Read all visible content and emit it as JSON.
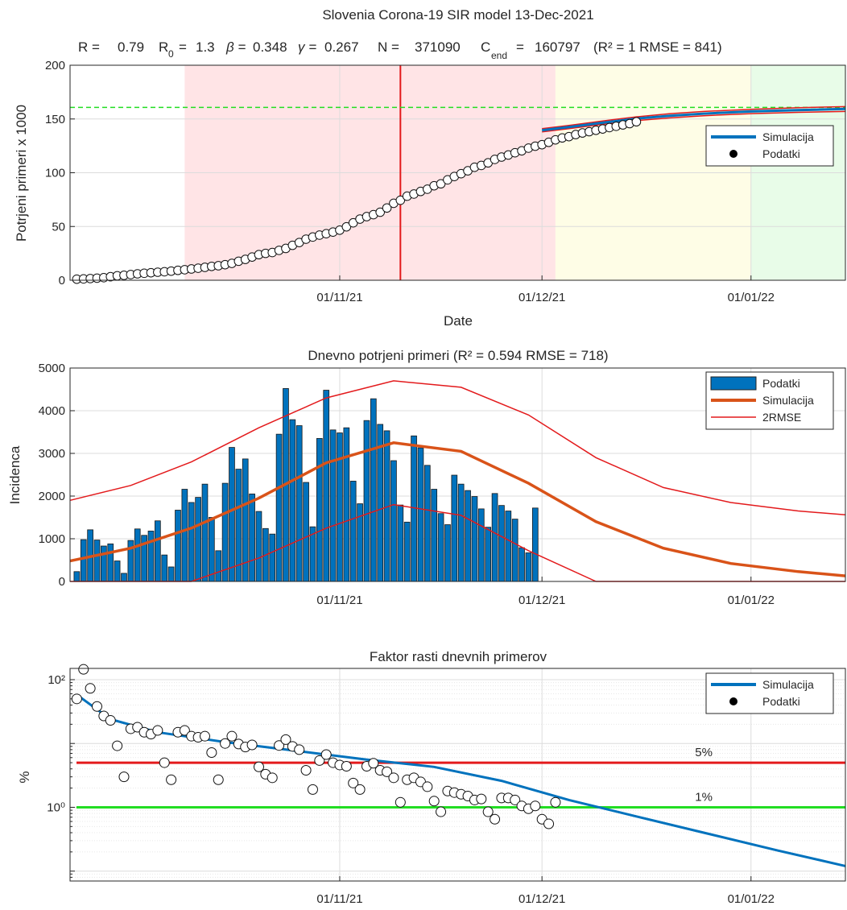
{
  "chart_data": [
    {
      "type": "line",
      "title": "Slovenia Corona-19 SIR model 13-Dec-2021",
      "params": {
        "R_lbl": "R =",
        "R": "0.79",
        "R0_lbl": "R",
        "R0_sub": "0",
        "R0_eq": "=",
        "R0": "1.3",
        "beta_lbl": "β =",
        "beta": "0.348",
        "gamma_lbl": "γ =",
        "gamma": "0.267",
        "N_lbl": "N =",
        "N": "371090",
        "C_lbl": "C",
        "C_sub": "end",
        "C_eq": "=",
        "C_end": "160797",
        "fit": "(R² = 1  RMSE = 841)"
      },
      "xlabel": "Date",
      "ylabel": "Potrjeni primeri x 1000",
      "xlim": [
        "2021-09-22",
        "2022-01-15"
      ],
      "ylim": [
        0,
        200
      ],
      "xticks": [
        "01/11/21",
        "01/12/21",
        "01/01/22"
      ],
      "yticks": [
        "0",
        "50",
        "100",
        "150",
        "200"
      ],
      "grid": true,
      "legend": {
        "position": "top-right",
        "entries": [
          "Simulacija",
          "Podatki"
        ]
      },
      "shaded_regions": [
        {
          "from": "2021-10-09",
          "to": "2021-12-03",
          "color": "#ffe4e6"
        },
        {
          "from": "2021-12-03",
          "to": "2022-01-01",
          "color": "#fefde6"
        },
        {
          "from": "2022-01-01",
          "to": "2022-01-15",
          "color": "#e8fce8"
        }
      ],
      "vertical_marker": {
        "date": "2021-11-10",
        "color": "#e31a1c"
      },
      "horizontal_marker": {
        "value": 160.8,
        "color": "#22dd22"
      },
      "simulation_dates": [
        "2021-12-01",
        "2021-12-05",
        "2021-12-10",
        "2021-12-15",
        "2021-12-20",
        "2021-12-25",
        "2022-01-01",
        "2022-01-08",
        "2022-01-15"
      ],
      "simulation_values": [
        139.5,
        142.5,
        146.5,
        150.3,
        153.0,
        155.0,
        157.0,
        158.3,
        159.3
      ],
      "band_upper": [
        141.0,
        144.0,
        148.2,
        152.0,
        155.0,
        157.0,
        159.0,
        160.5,
        161.5
      ],
      "band_lower": [
        138.0,
        141.0,
        145.0,
        148.5,
        151.0,
        153.0,
        155.0,
        156.2,
        157.0
      ],
      "data_start": "2021-09-23",
      "data_values": [
        1.0,
        1.25,
        1.6,
        1.95,
        2.4,
        3.3,
        4.2,
        4.6,
        5.3,
        6.0,
        6.5,
        7.0,
        7.5,
        7.9,
        8.5,
        9.2,
        9.8,
        10.5,
        11.2,
        12.0,
        12.9,
        13.5,
        14.5,
        15.7,
        17.7,
        19.4,
        21.6,
        23.8,
        25.0,
        25.8,
        27.8,
        29.6,
        32.5,
        35.1,
        38.2,
        40.2,
        42.0,
        43.3,
        44.8,
        46.6,
        49.7,
        53.4,
        56.9,
        59.2,
        61.0,
        63.3,
        67.2,
        71.6,
        74.4,
        78.2,
        80.2,
        82.6,
        84.7,
        87.9,
        89.7,
        93.4,
        96.5,
        99.1,
        101.8,
        105.1,
        106.8,
        109.2,
        112.4,
        114.6,
        116.5,
        118.6,
        120.4,
        122.9,
        124.7,
        126.1,
        128.3,
        130.6,
        132.4,
        133.6,
        135.5,
        137.0,
        138.2,
        139.5,
        140.7,
        142.0,
        143.2,
        144.5,
        145.7,
        147.4
      ]
    },
    {
      "type": "bar",
      "title": "Dnevno potrjeni primeri (R² = 0.594  RMSE = 718)",
      "ylabel": "Incidenca",
      "xlim": [
        "2021-09-22",
        "2022-01-15"
      ],
      "ylim": [
        0,
        5000
      ],
      "xticks": [
        "01/11/21",
        "01/12/21",
        "01/01/22"
      ],
      "yticks": [
        "0",
        "1000",
        "2000",
        "3000",
        "4000",
        "5000"
      ],
      "grid": true,
      "legend": {
        "position": "top-right",
        "entries": [
          "Podatki",
          "Simulacija",
          "2RMSE"
        ]
      },
      "data_start": "2021-09-23",
      "values": [
        230,
        980,
        1210,
        970,
        830,
        880,
        480,
        190,
        960,
        1230,
        1080,
        1180,
        1420,
        620,
        340,
        1670,
        2160,
        1850,
        1970,
        2280,
        1500,
        720,
        2300,
        3140,
        2630,
        2870,
        2050,
        1640,
        1240,
        1110,
        3450,
        4520,
        3790,
        3650,
        2320,
        1280,
        3350,
        4480,
        3550,
        3480,
        3600,
        2350,
        1820,
        3770,
        4280,
        3680,
        3530,
        2830,
        1790,
        1390,
        3410,
        3130,
        2720,
        2160,
        1590,
        1330,
        2490,
        2280,
        2130,
        1990,
        1700,
        1270,
        2060,
        1780,
        1650,
        1460,
        790,
        670,
        1720
      ],
      "simulation_dates": [
        "2021-09-22",
        "2021-10-01",
        "2021-10-10",
        "2021-10-20",
        "2021-10-30",
        "2021-11-09",
        "2021-11-19",
        "2021-11-29",
        "2021-12-09",
        "2021-12-19",
        "2021-12-29",
        "2022-01-08",
        "2022-01-15"
      ],
      "simulation_values": [
        480,
        780,
        1250,
        1950,
        2780,
        3250,
        3050,
        2300,
        1400,
        780,
        420,
        230,
        130
      ],
      "upper_values": [
        1900,
        2250,
        2800,
        3600,
        4300,
        4700,
        4550,
        3900,
        2900,
        2200,
        1850,
        1650,
        1560
      ],
      "lower_values": [
        0,
        0,
        0,
        550,
        1250,
        1800,
        1550,
        720,
        0,
        0,
        0,
        0,
        0
      ]
    },
    {
      "type": "scatter",
      "title": "Faktor rasti dnevnih primerov",
      "ylabel": "%",
      "xlim": [
        "2021-09-22",
        "2022-01-15"
      ],
      "ylim": [
        0.07,
        150
      ],
      "yscale": "log",
      "xticks": [
        "01/11/21",
        "01/12/21",
        "01/01/22"
      ],
      "yticks": [
        "10⁰",
        "10²"
      ],
      "grid": true,
      "legend": {
        "position": "top-right",
        "entries": [
          "Simulacija",
          "Podatki"
        ]
      },
      "reference_lines": [
        {
          "value": 5,
          "label": "5%",
          "color": "#e31a1c"
        },
        {
          "value": 1,
          "label": "1%",
          "color": "#22dd22"
        }
      ],
      "simulation_dates": [
        "2021-09-23",
        "2021-09-28",
        "2021-10-05",
        "2021-10-15",
        "2021-10-25",
        "2021-11-05",
        "2021-11-15",
        "2021-11-25",
        "2021-12-05",
        "2021-12-15",
        "2021-12-25",
        "2022-01-05",
        "2022-01-15"
      ],
      "simulation_values": [
        58,
        24,
        15,
        10.5,
        7.8,
        5.6,
        4.3,
        2.6,
        1.3,
        0.72,
        0.4,
        0.21,
        0.12
      ],
      "points": [
        {
          "date": "2021-09-23",
          "value": 50
        },
        {
          "date": "2021-09-24",
          "value": 145
        },
        {
          "date": "2021-09-25",
          "value": 73
        },
        {
          "date": "2021-09-26",
          "value": 38
        },
        {
          "date": "2021-09-27",
          "value": 27
        },
        {
          "date": "2021-09-28",
          "value": 23
        },
        {
          "date": "2021-09-29",
          "value": 9.2
        },
        {
          "date": "2021-09-30",
          "value": 3.0
        },
        {
          "date": "2021-10-01",
          "value": 17
        },
        {
          "date": "2021-10-02",
          "value": 18
        },
        {
          "date": "2021-10-03",
          "value": 15
        },
        {
          "date": "2021-10-04",
          "value": 14
        },
        {
          "date": "2021-10-05",
          "value": 16
        },
        {
          "date": "2021-10-06",
          "value": 5.0
        },
        {
          "date": "2021-10-07",
          "value": 2.7
        },
        {
          "date": "2021-10-08",
          "value": 15
        },
        {
          "date": "2021-10-09",
          "value": 16
        },
        {
          "date": "2021-10-10",
          "value": 13
        },
        {
          "date": "2021-10-11",
          "value": 12.5
        },
        {
          "date": "2021-10-12",
          "value": 13
        },
        {
          "date": "2021-10-13",
          "value": 7.2
        },
        {
          "date": "2021-10-14",
          "value": 2.7
        },
        {
          "date": "2021-10-15",
          "value": 10
        },
        {
          "date": "2021-10-16",
          "value": 13
        },
        {
          "date": "2021-10-17",
          "value": 9.8
        },
        {
          "date": "2021-10-18",
          "value": 8.8
        },
        {
          "date": "2021-10-19",
          "value": 9.5
        },
        {
          "date": "2021-10-20",
          "value": 4.3
        },
        {
          "date": "2021-10-21",
          "value": 3.3
        },
        {
          "date": "2021-10-22",
          "value": 2.9
        },
        {
          "date": "2021-10-23",
          "value": 9.3
        },
        {
          "date": "2021-10-24",
          "value": 11.5
        },
        {
          "date": "2021-10-25",
          "value": 9.0
        },
        {
          "date": "2021-10-26",
          "value": 8.0
        },
        {
          "date": "2021-10-27",
          "value": 3.8
        },
        {
          "date": "2021-10-28",
          "value": 1.9
        },
        {
          "date": "2021-10-29",
          "value": 5.4
        },
        {
          "date": "2021-10-30",
          "value": 6.7
        },
        {
          "date": "2021-10-31",
          "value": 5.0
        },
        {
          "date": "2021-11-01",
          "value": 4.6
        },
        {
          "date": "2021-11-02",
          "value": 4.4
        },
        {
          "date": "2021-11-03",
          "value": 2.4
        },
        {
          "date": "2021-11-04",
          "value": 1.9
        },
        {
          "date": "2021-11-05",
          "value": 4.4
        },
        {
          "date": "2021-11-06",
          "value": 4.9
        },
        {
          "date": "2021-11-07",
          "value": 3.8
        },
        {
          "date": "2021-11-08",
          "value": 3.6
        },
        {
          "date": "2021-11-09",
          "value": 2.9
        },
        {
          "date": "2021-11-10",
          "value": 1.2
        },
        {
          "date": "2021-11-11",
          "value": 2.7
        },
        {
          "date": "2021-11-12",
          "value": 2.9
        },
        {
          "date": "2021-11-13",
          "value": 2.5
        },
        {
          "date": "2021-11-14",
          "value": 2.1
        },
        {
          "date": "2021-11-15",
          "value": 1.25
        },
        {
          "date": "2021-11-16",
          "value": 0.85
        },
        {
          "date": "2021-11-17",
          "value": 1.8
        },
        {
          "date": "2021-11-18",
          "value": 1.7
        },
        {
          "date": "2021-11-19",
          "value": 1.6
        },
        {
          "date": "2021-11-20",
          "value": 1.5
        },
        {
          "date": "2021-11-21",
          "value": 1.3
        },
        {
          "date": "2021-11-22",
          "value": 1.35
        },
        {
          "date": "2021-11-23",
          "value": 0.85
        },
        {
          "date": "2021-11-24",
          "value": 0.65
        },
        {
          "date": "2021-11-25",
          "value": 1.4
        },
        {
          "date": "2021-11-26",
          "value": 1.4
        },
        {
          "date": "2021-11-27",
          "value": 1.3
        },
        {
          "date": "2021-11-28",
          "value": 1.05
        },
        {
          "date": "2021-11-29",
          "value": 0.95
        },
        {
          "date": "2021-11-30",
          "value": 1.05
        },
        {
          "date": "2021-12-01",
          "value": 0.65
        },
        {
          "date": "2021-12-02",
          "value": 0.55
        },
        {
          "date": "2021-12-03",
          "value": 1.2
        }
      ]
    }
  ]
}
